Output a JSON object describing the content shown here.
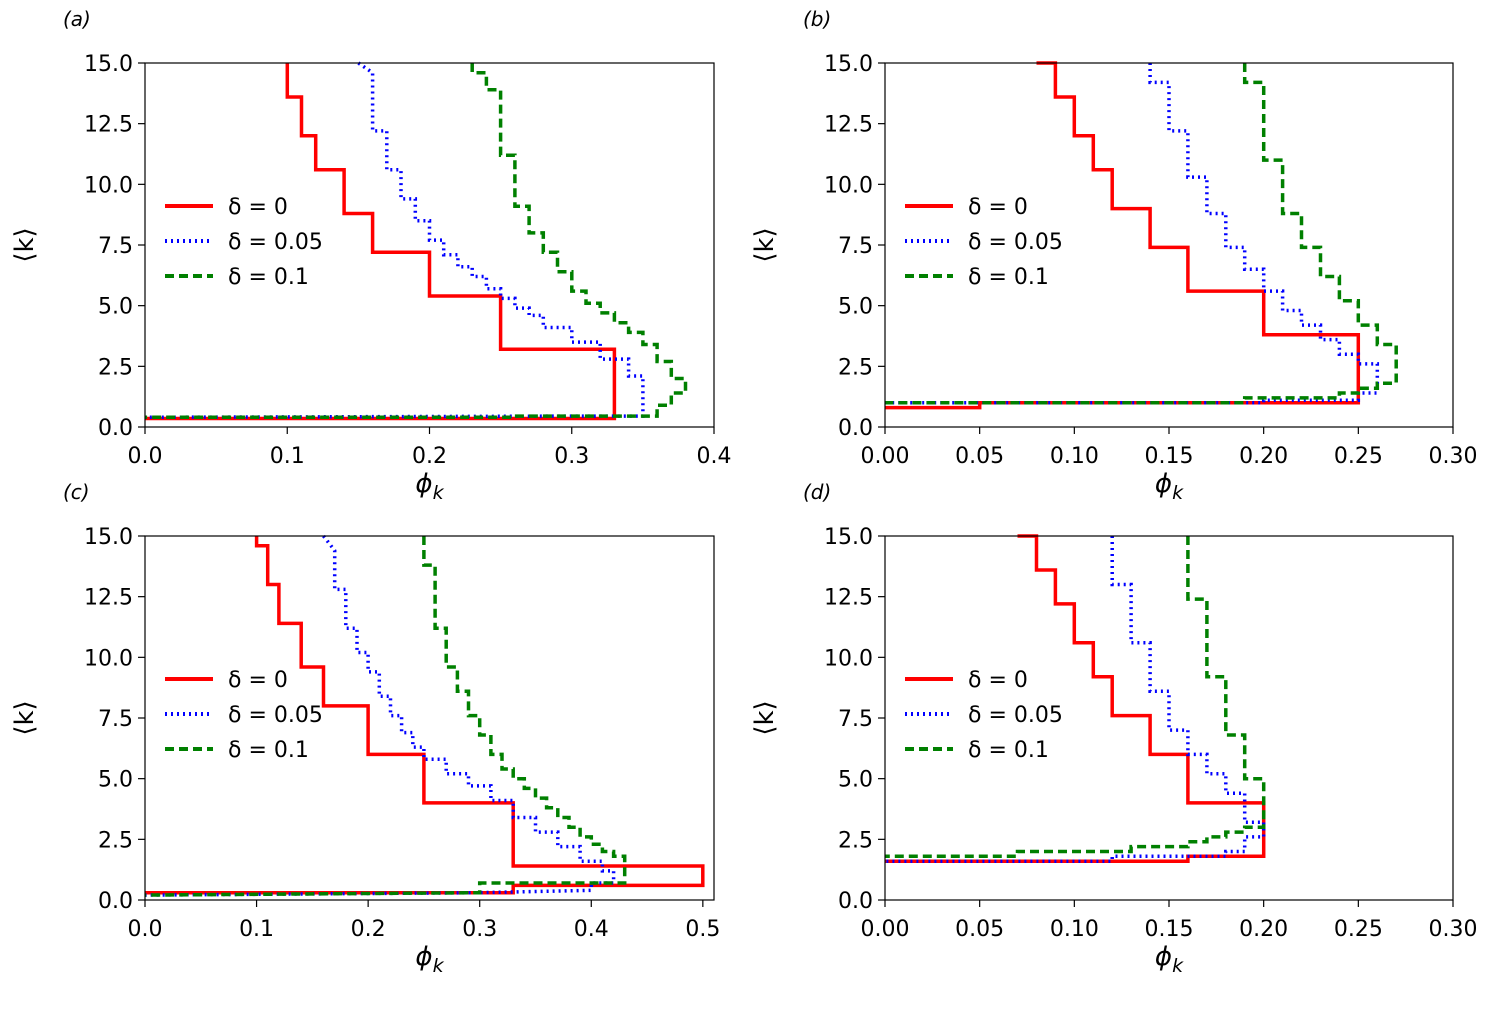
{
  "chart_data": [
    {
      "panel_label": "(a)",
      "type": "line",
      "xlabel": "ϕ",
      "xlabel_sub": "k",
      "ylabel": "⟨k⟩",
      "xlim": [
        0.0,
        0.4
      ],
      "ylim": [
        0.0,
        15.0
      ],
      "xticks": [
        0.0,
        0.1,
        0.2,
        0.3,
        0.4
      ],
      "xtick_labels": [
        "0.0",
        "0.1",
        "0.2",
        "0.3",
        "0.4"
      ],
      "yticks": [
        0.0,
        2.5,
        5.0,
        7.5,
        10.0,
        12.5,
        15.0
      ],
      "ytick_labels": [
        "0.0",
        "2.5",
        "5.0",
        "7.5",
        "10.0",
        "12.5",
        "15.0"
      ],
      "legend_position": "center-left",
      "series": [
        {
          "name": "δ = 0",
          "color": "#ff0000",
          "dash": "solid",
          "x": [
            0.1,
            0.1,
            0.11,
            0.11,
            0.12,
            0.12,
            0.14,
            0.14,
            0.16,
            0.16,
            0.2,
            0.2,
            0.25,
            0.25,
            0.33,
            0.33,
            0.26,
            0.0
          ],
          "y": [
            15.0,
            13.6,
            13.6,
            12.0,
            12.0,
            10.6,
            10.6,
            8.8,
            8.8,
            7.2,
            7.2,
            5.4,
            5.4,
            3.2,
            3.2,
            0.35,
            0.35,
            0.35
          ]
        },
        {
          "name": "δ = 0.05",
          "color": "#0000ff",
          "dash": "dotted",
          "x": [
            0.15,
            0.16,
            0.16,
            0.17,
            0.17,
            0.18,
            0.18,
            0.19,
            0.19,
            0.2,
            0.2,
            0.21,
            0.21,
            0.22,
            0.22,
            0.23,
            0.23,
            0.24,
            0.24,
            0.25,
            0.25,
            0.26,
            0.26,
            0.27,
            0.27,
            0.28,
            0.28,
            0.3,
            0.3,
            0.32,
            0.32,
            0.34,
            0.34,
            0.35,
            0.35,
            0.3,
            0.0
          ],
          "y": [
            15.0,
            14.6,
            12.2,
            12.2,
            10.6,
            10.6,
            9.4,
            9.4,
            8.5,
            8.5,
            7.7,
            7.7,
            7.1,
            7.1,
            6.6,
            6.6,
            6.2,
            6.2,
            5.7,
            5.7,
            5.3,
            5.3,
            4.9,
            4.9,
            4.6,
            4.6,
            4.1,
            4.1,
            3.5,
            3.5,
            2.8,
            2.8,
            2.1,
            2.1,
            0.45,
            0.45,
            0.4
          ]
        },
        {
          "name": "δ = 0.1",
          "color": "#008000",
          "dash": "dashed",
          "x": [
            0.23,
            0.23,
            0.24,
            0.24,
            0.25,
            0.25,
            0.26,
            0.26,
            0.27,
            0.27,
            0.28,
            0.28,
            0.29,
            0.29,
            0.3,
            0.3,
            0.31,
            0.31,
            0.32,
            0.32,
            0.33,
            0.33,
            0.34,
            0.34,
            0.35,
            0.35,
            0.36,
            0.36,
            0.37,
            0.37,
            0.38,
            0.38,
            0.37,
            0.37,
            0.36,
            0.36,
            0.26,
            0.26,
            0.0
          ],
          "y": [
            15.0,
            14.6,
            14.6,
            13.9,
            13.9,
            11.2,
            11.2,
            9.1,
            9.1,
            8.0,
            8.0,
            7.2,
            7.2,
            6.4,
            6.4,
            5.6,
            5.6,
            5.1,
            5.1,
            4.7,
            4.7,
            4.3,
            4.3,
            3.9,
            3.9,
            3.4,
            3.4,
            2.7,
            2.7,
            2.0,
            2.0,
            1.4,
            1.4,
            0.9,
            0.9,
            0.45,
            0.45,
            0.4,
            0.4
          ]
        }
      ]
    },
    {
      "panel_label": "(b)",
      "type": "line",
      "xlabel": "ϕ",
      "xlabel_sub": "k",
      "ylabel": "⟨k⟩",
      "xlim": [
        0.0,
        0.3
      ],
      "ylim": [
        0.0,
        15.0
      ],
      "xticks": [
        0.0,
        0.05,
        0.1,
        0.15,
        0.2,
        0.25,
        0.3
      ],
      "xtick_labels": [
        "0.00",
        "0.05",
        "0.10",
        "0.15",
        "0.20",
        "0.25",
        "0.30"
      ],
      "yticks": [
        0.0,
        2.5,
        5.0,
        7.5,
        10.0,
        12.5,
        15.0
      ],
      "ytick_labels": [
        "0.0",
        "2.5",
        "5.0",
        "7.5",
        "10.0",
        "12.5",
        "15.0"
      ],
      "legend_position": "center-left",
      "series": [
        {
          "name": "δ = 0",
          "color": "#ff0000",
          "dash": "solid",
          "x": [
            0.08,
            0.09,
            0.09,
            0.1,
            0.1,
            0.11,
            0.11,
            0.12,
            0.12,
            0.14,
            0.14,
            0.16,
            0.16,
            0.2,
            0.2,
            0.25,
            0.25,
            0.2,
            0.2,
            0.05,
            0.05,
            0.0
          ],
          "y": [
            15.0,
            15.0,
            13.6,
            13.6,
            12.0,
            12.0,
            10.6,
            10.6,
            9.0,
            9.0,
            7.4,
            7.4,
            5.6,
            5.6,
            3.8,
            3.8,
            1.0,
            1.0,
            1.0,
            1.0,
            0.8,
            0.8
          ]
        },
        {
          "name": "δ = 0.05",
          "color": "#0000ff",
          "dash": "dotted",
          "x": [
            0.14,
            0.14,
            0.15,
            0.15,
            0.16,
            0.16,
            0.17,
            0.17,
            0.18,
            0.18,
            0.19,
            0.19,
            0.2,
            0.2,
            0.21,
            0.21,
            0.22,
            0.22,
            0.23,
            0.23,
            0.24,
            0.24,
            0.25,
            0.25,
            0.26,
            0.26,
            0.25,
            0.25,
            0.2,
            0.2,
            0.0
          ],
          "y": [
            15.0,
            14.2,
            14.2,
            12.2,
            12.2,
            10.3,
            10.3,
            8.8,
            8.8,
            7.4,
            7.4,
            6.5,
            6.5,
            5.6,
            5.6,
            4.8,
            4.8,
            4.2,
            4.2,
            3.6,
            3.6,
            3.0,
            3.0,
            2.6,
            2.6,
            1.4,
            1.4,
            1.1,
            1.1,
            1.0,
            1.0
          ]
        },
        {
          "name": "δ = 0.1",
          "color": "#008000",
          "dash": "dashed",
          "x": [
            0.19,
            0.19,
            0.2,
            0.2,
            0.21,
            0.21,
            0.22,
            0.22,
            0.23,
            0.23,
            0.24,
            0.24,
            0.25,
            0.25,
            0.26,
            0.26,
            0.27,
            0.27,
            0.26,
            0.26,
            0.25,
            0.25,
            0.24,
            0.24,
            0.19,
            0.19,
            0.0
          ],
          "y": [
            15.0,
            14.2,
            14.2,
            11.0,
            11.0,
            8.8,
            8.8,
            7.4,
            7.4,
            6.2,
            6.2,
            5.2,
            5.2,
            4.2,
            4.2,
            3.4,
            3.4,
            1.8,
            1.8,
            1.6,
            1.6,
            1.4,
            1.4,
            1.2,
            1.2,
            1.0,
            1.0
          ]
        }
      ]
    },
    {
      "panel_label": "(c)",
      "type": "line",
      "xlabel": "ϕ",
      "xlabel_sub": "k",
      "ylabel": "⟨k⟩",
      "xlim": [
        0.0,
        0.51
      ],
      "ylim": [
        0.0,
        15.0
      ],
      "xticks": [
        0.0,
        0.1,
        0.2,
        0.3,
        0.4,
        0.5
      ],
      "xtick_labels": [
        "0.0",
        "0.1",
        "0.2",
        "0.3",
        "0.4",
        "0.5"
      ],
      "yticks": [
        0.0,
        2.5,
        5.0,
        7.5,
        10.0,
        12.5,
        15.0
      ],
      "ytick_labels": [
        "0.0",
        "2.5",
        "5.0",
        "7.5",
        "10.0",
        "12.5",
        "15.0"
      ],
      "legend_position": "center-left",
      "series": [
        {
          "name": "δ = 0",
          "color": "#ff0000",
          "dash": "solid",
          "x": [
            0.1,
            0.1,
            0.11,
            0.11,
            0.12,
            0.12,
            0.14,
            0.14,
            0.16,
            0.16,
            0.2,
            0.2,
            0.25,
            0.25,
            0.33,
            0.33,
            0.5,
            0.5,
            0.33,
            0.33,
            0.3,
            0.0
          ],
          "y": [
            15.0,
            14.6,
            14.6,
            13.0,
            13.0,
            11.4,
            11.4,
            9.6,
            9.6,
            8.0,
            8.0,
            6.0,
            6.0,
            4.0,
            4.0,
            1.4,
            1.4,
            0.6,
            0.6,
            0.3,
            0.3,
            0.3
          ]
        },
        {
          "name": "δ = 0.05",
          "color": "#0000ff",
          "dash": "dotted",
          "x": [
            0.16,
            0.17,
            0.17,
            0.18,
            0.18,
            0.19,
            0.19,
            0.2,
            0.2,
            0.21,
            0.21,
            0.22,
            0.22,
            0.23,
            0.23,
            0.24,
            0.24,
            0.25,
            0.25,
            0.27,
            0.27,
            0.29,
            0.29,
            0.31,
            0.31,
            0.33,
            0.33,
            0.35,
            0.35,
            0.37,
            0.37,
            0.39,
            0.39,
            0.41,
            0.41,
            0.42,
            0.42,
            0.4,
            0.4,
            0.3,
            0.0
          ],
          "y": [
            15.0,
            14.4,
            12.8,
            12.8,
            11.2,
            11.2,
            10.2,
            10.2,
            9.4,
            9.4,
            8.4,
            8.4,
            7.6,
            7.6,
            6.9,
            6.9,
            6.3,
            6.3,
            5.8,
            5.8,
            5.2,
            5.2,
            4.7,
            4.7,
            4.1,
            4.1,
            3.4,
            3.4,
            2.8,
            2.8,
            2.2,
            2.2,
            1.6,
            1.6,
            1.2,
            1.2,
            0.7,
            0.7,
            0.4,
            0.3,
            0.2
          ]
        },
        {
          "name": "δ = 0.1",
          "color": "#008000",
          "dash": "dashed",
          "x": [
            0.25,
            0.25,
            0.26,
            0.26,
            0.27,
            0.27,
            0.28,
            0.28,
            0.29,
            0.29,
            0.3,
            0.3,
            0.31,
            0.31,
            0.32,
            0.32,
            0.33,
            0.33,
            0.34,
            0.34,
            0.35,
            0.35,
            0.36,
            0.36,
            0.37,
            0.37,
            0.38,
            0.38,
            0.39,
            0.39,
            0.4,
            0.4,
            0.41,
            0.41,
            0.42,
            0.42,
            0.43,
            0.43,
            0.3,
            0.3,
            0.0
          ],
          "y": [
            15.0,
            13.8,
            13.8,
            11.2,
            11.2,
            9.6,
            9.6,
            8.6,
            8.6,
            7.6,
            7.6,
            6.8,
            6.8,
            6.0,
            6.0,
            5.4,
            5.4,
            5.0,
            5.0,
            4.6,
            4.6,
            4.2,
            4.2,
            3.8,
            3.8,
            3.4,
            3.4,
            3.0,
            3.0,
            2.6,
            2.6,
            2.3,
            2.3,
            2.0,
            2.0,
            1.8,
            1.8,
            0.7,
            0.7,
            0.3,
            0.2
          ]
        }
      ]
    },
    {
      "panel_label": "(d)",
      "type": "line",
      "xlabel": "ϕ",
      "xlabel_sub": "k",
      "ylabel": "⟨k⟩",
      "xlim": [
        0.0,
        0.3
      ],
      "ylim": [
        0.0,
        15.0
      ],
      "xticks": [
        0.0,
        0.05,
        0.1,
        0.15,
        0.2,
        0.25,
        0.3
      ],
      "xtick_labels": [
        "0.00",
        "0.05",
        "0.10",
        "0.15",
        "0.20",
        "0.25",
        "0.30"
      ],
      "yticks": [
        0.0,
        2.5,
        5.0,
        7.5,
        10.0,
        12.5,
        15.0
      ],
      "ytick_labels": [
        "0.0",
        "2.5",
        "5.0",
        "7.5",
        "10.0",
        "12.5",
        "15.0"
      ],
      "legend_position": "center-left",
      "series": [
        {
          "name": "δ = 0",
          "color": "#ff0000",
          "dash": "solid",
          "x": [
            0.07,
            0.08,
            0.08,
            0.09,
            0.09,
            0.1,
            0.1,
            0.11,
            0.11,
            0.12,
            0.12,
            0.14,
            0.14,
            0.16,
            0.16,
            0.2,
            0.2,
            0.16,
            0.16,
            0.0
          ],
          "y": [
            15.0,
            15.0,
            13.6,
            13.6,
            12.2,
            12.2,
            10.6,
            10.6,
            9.2,
            9.2,
            7.6,
            7.6,
            6.0,
            6.0,
            4.0,
            4.0,
            1.8,
            1.8,
            1.6,
            1.6
          ]
        },
        {
          "name": "δ = 0.05",
          "color": "#0000ff",
          "dash": "dotted",
          "x": [
            0.12,
            0.12,
            0.13,
            0.13,
            0.14,
            0.14,
            0.15,
            0.15,
            0.16,
            0.16,
            0.17,
            0.17,
            0.18,
            0.18,
            0.19,
            0.19,
            0.2,
            0.2,
            0.19,
            0.19,
            0.18,
            0.18,
            0.12,
            0.12,
            0.0
          ],
          "y": [
            15.0,
            13.0,
            13.0,
            10.6,
            10.6,
            8.6,
            8.6,
            7.0,
            7.0,
            6.0,
            6.0,
            5.2,
            5.2,
            4.4,
            4.4,
            3.2,
            3.2,
            2.6,
            2.6,
            2.0,
            2.0,
            1.8,
            1.8,
            1.6,
            1.6
          ]
        },
        {
          "name": "δ = 0.1",
          "color": "#008000",
          "dash": "dashed",
          "x": [
            0.16,
            0.16,
            0.17,
            0.17,
            0.18,
            0.18,
            0.19,
            0.19,
            0.2,
            0.2,
            0.19,
            0.19,
            0.18,
            0.18,
            0.17,
            0.17,
            0.16,
            0.16,
            0.13,
            0.13,
            0.07,
            0.07,
            0.0
          ],
          "y": [
            15.0,
            12.4,
            12.4,
            9.2,
            9.2,
            6.8,
            6.8,
            5.0,
            5.0,
            3.0,
            3.0,
            2.8,
            2.8,
            2.6,
            2.6,
            2.4,
            2.4,
            2.2,
            2.2,
            2.0,
            2.0,
            1.8,
            1.8
          ]
        }
      ]
    }
  ]
}
